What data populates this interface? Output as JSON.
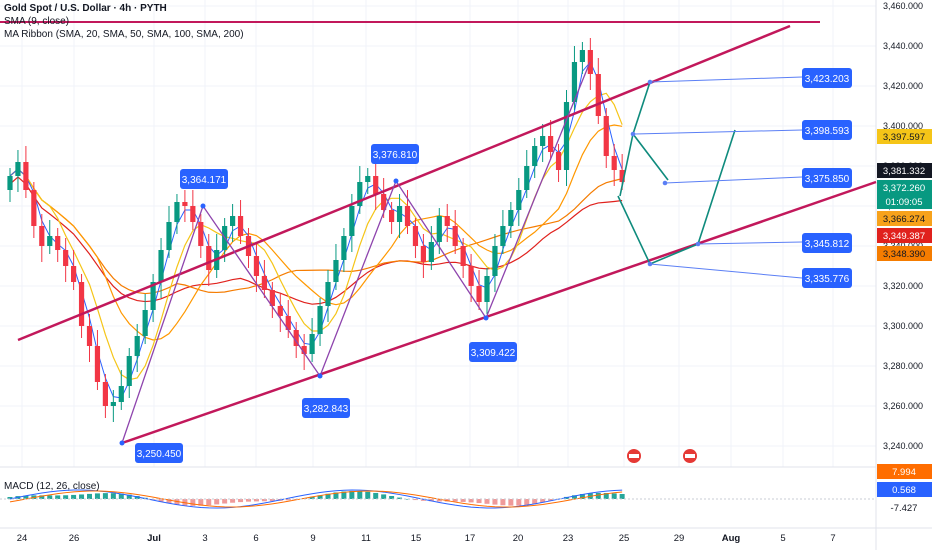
{
  "header": {
    "title": "Gold Spot / U.S. Dollar · 4h · PYTH",
    "sma": "SMA (9, close)",
    "ma_ribbon": "MA Ribbon (SMA, 20, SMA, 50, SMA, 100, SMA, 200)"
  },
  "macd": {
    "label": "MACD (12, 26, close)",
    "values": [
      "7.994",
      "0.568",
      "-7.427"
    ]
  },
  "price_axis": {
    "ticks": [
      "3,460.000",
      "3,440.000",
      "3,420.000",
      "3,400.000",
      "3,380.000",
      "3,360.000",
      "3,340.000",
      "3,320.000",
      "3,300.000",
      "3,280.000",
      "3,260.000",
      "3,240.000"
    ],
    "badges": [
      {
        "text": "3,397.597",
        "bg": "#f5c518",
        "fg": "#131722"
      },
      {
        "text": "3,381.332",
        "bg": "#131722",
        "fg": "#ffffff"
      },
      {
        "text": "3,372.260",
        "bg": "#089981",
        "fg": "#ffffff"
      },
      {
        "text": "01:09:05",
        "bg": "#089981",
        "fg": "#ffffff"
      },
      {
        "text": "3,366.274",
        "bg": "#f7a21b",
        "fg": "#131722"
      },
      {
        "text": "3,349.387",
        "bg": "#e0211d",
        "fg": "#ffffff"
      },
      {
        "text": "3,348.390",
        "bg": "#f57c00",
        "fg": "#131722"
      }
    ]
  },
  "time_axis": {
    "ticks": [
      "24",
      "26",
      "Jul",
      "3",
      "6",
      "9",
      "11",
      "15",
      "17",
      "20",
      "23",
      "25",
      "29",
      "Aug",
      "5",
      "7"
    ]
  },
  "annotations": {
    "pivots": [
      "3,364.171",
      "3,376.810",
      "3,250.450",
      "3,282.843",
      "3,309.422"
    ],
    "targets": [
      "3,423.203",
      "3,398.593",
      "3,375.850",
      "3,345.812",
      "3,335.776"
    ]
  },
  "chart_data": {
    "type": "candlestick",
    "symbol": "Gold Spot / U.S. Dollar",
    "interval": "4h",
    "source": "PYTH",
    "ylim": [
      3240,
      3460
    ],
    "close_approx": [
      3375,
      3382,
      3368,
      3350,
      3340,
      3345,
      3338,
      3330,
      3322,
      3300,
      3290,
      3272,
      3260,
      3262,
      3270,
      3285,
      3295,
      3308,
      3322,
      3338,
      3352,
      3362,
      3360,
      3352,
      3340,
      3328,
      3338,
      3350,
      3355,
      3345,
      3335,
      3325,
      3318,
      3310,
      3305,
      3298,
      3290,
      3286,
      3296,
      3310,
      3322,
      3333,
      3345,
      3360,
      3372,
      3375,
      3366,
      3358,
      3352,
      3360,
      3350,
      3340,
      3332,
      3342,
      3355,
      3350,
      3340,
      3330,
      3320,
      3312,
      3325,
      3340,
      3350,
      3358,
      3368,
      3380,
      3390,
      3395,
      3387,
      3378,
      3412,
      3432,
      3438,
      3426,
      3405,
      3385,
      3378,
      3372
    ],
    "channel": {
      "upper": [
        [
          3250.45,
          3452
        ]
      ],
      "lower": [
        [
          3250.45,
          3376
        ]
      ],
      "resistance": 3452
    },
    "pivot_levels": [
      3364.171,
      3376.81,
      3250.45,
      3282.843,
      3309.422
    ],
    "projection_targets": [
      3423.203,
      3398.593,
      3375.85,
      3345.812,
      3335.776
    ],
    "macd_levels": [
      7.994,
      0.568,
      -7.427
    ]
  },
  "colors": {
    "channel": "#c2185b",
    "resistance": "#c2185b",
    "zigzag": "#8e44ad",
    "projection": "#0f8b7d",
    "label_bg": "#2962ff",
    "target_line": "#5b7ff5",
    "up": "#089981",
    "down": "#f23645",
    "sma9": "#2962ff",
    "ma20": "#f5c518",
    "ma50": "#ff9800",
    "ma100": "#f57c00",
    "ma200": "#e0211d"
  }
}
